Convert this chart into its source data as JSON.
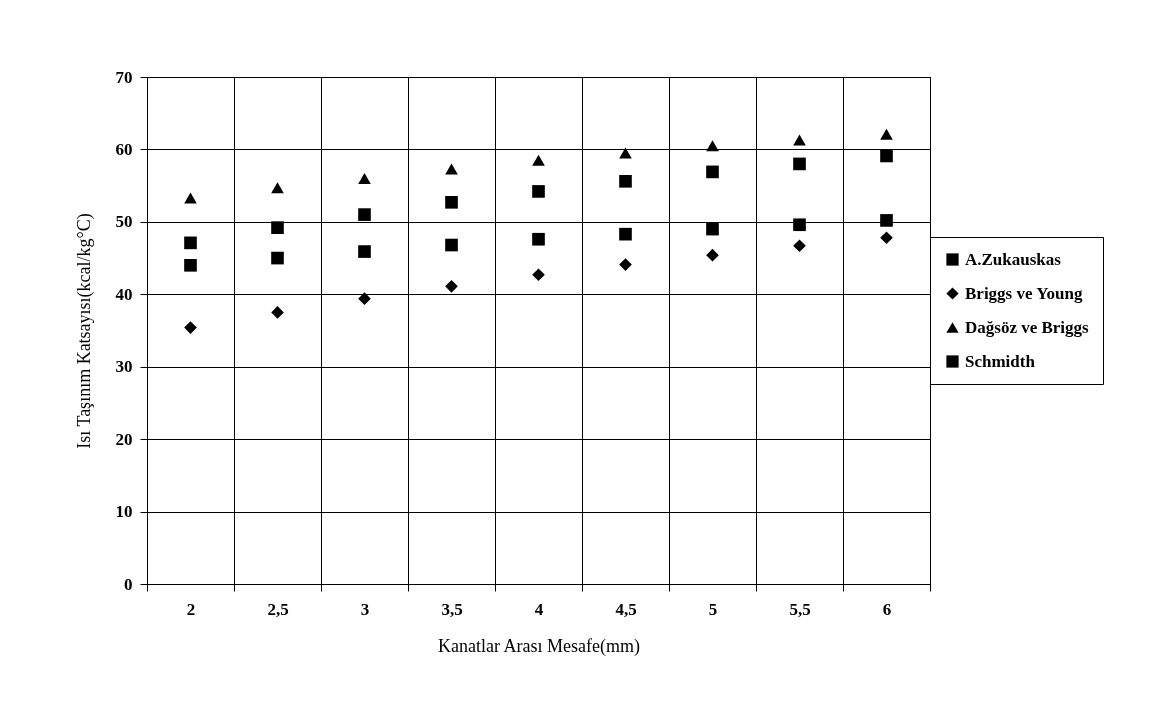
{
  "chart_data": {
    "type": "scatter",
    "xlabel": "Kanatlar Arası Mesafe(mm)",
    "ylabel": "Isı Taşınım Katsayısı(kcal/kg°C)",
    "categories": [
      "2",
      "2,5",
      "3",
      "3,5",
      "4",
      "4,5",
      "5",
      "5,5",
      "6"
    ],
    "series": [
      {
        "name": "A.Zukauskas",
        "color": "#000000",
        "marker": "square",
        "values": [
          44.0,
          45.0,
          45.9,
          46.8,
          47.6,
          48.3,
          49.0,
          49.6,
          50.2
        ]
      },
      {
        "name": "Briggs ve Young",
        "color": "#000000",
        "marker": "diamond",
        "values": [
          35.4,
          37.5,
          39.4,
          41.1,
          42.7,
          44.1,
          45.4,
          46.7,
          47.8
        ]
      },
      {
        "name": "Dağsöz ve Briggs",
        "color": "#000000",
        "marker": "triangle",
        "values": [
          53.3,
          54.7,
          56.0,
          57.3,
          58.5,
          59.5,
          60.5,
          61.3,
          62.1
        ]
      },
      {
        "name": "Schmidth",
        "color": "#000000",
        "marker": "square",
        "values": [
          47.1,
          49.2,
          51.0,
          52.7,
          54.2,
          55.6,
          56.9,
          58.0,
          59.1
        ]
      }
    ],
    "ylim": [
      0,
      70
    ],
    "yticks": [
      0,
      10,
      20,
      30,
      40,
      50,
      60,
      70
    ],
    "grid": true,
    "legend": "right"
  }
}
